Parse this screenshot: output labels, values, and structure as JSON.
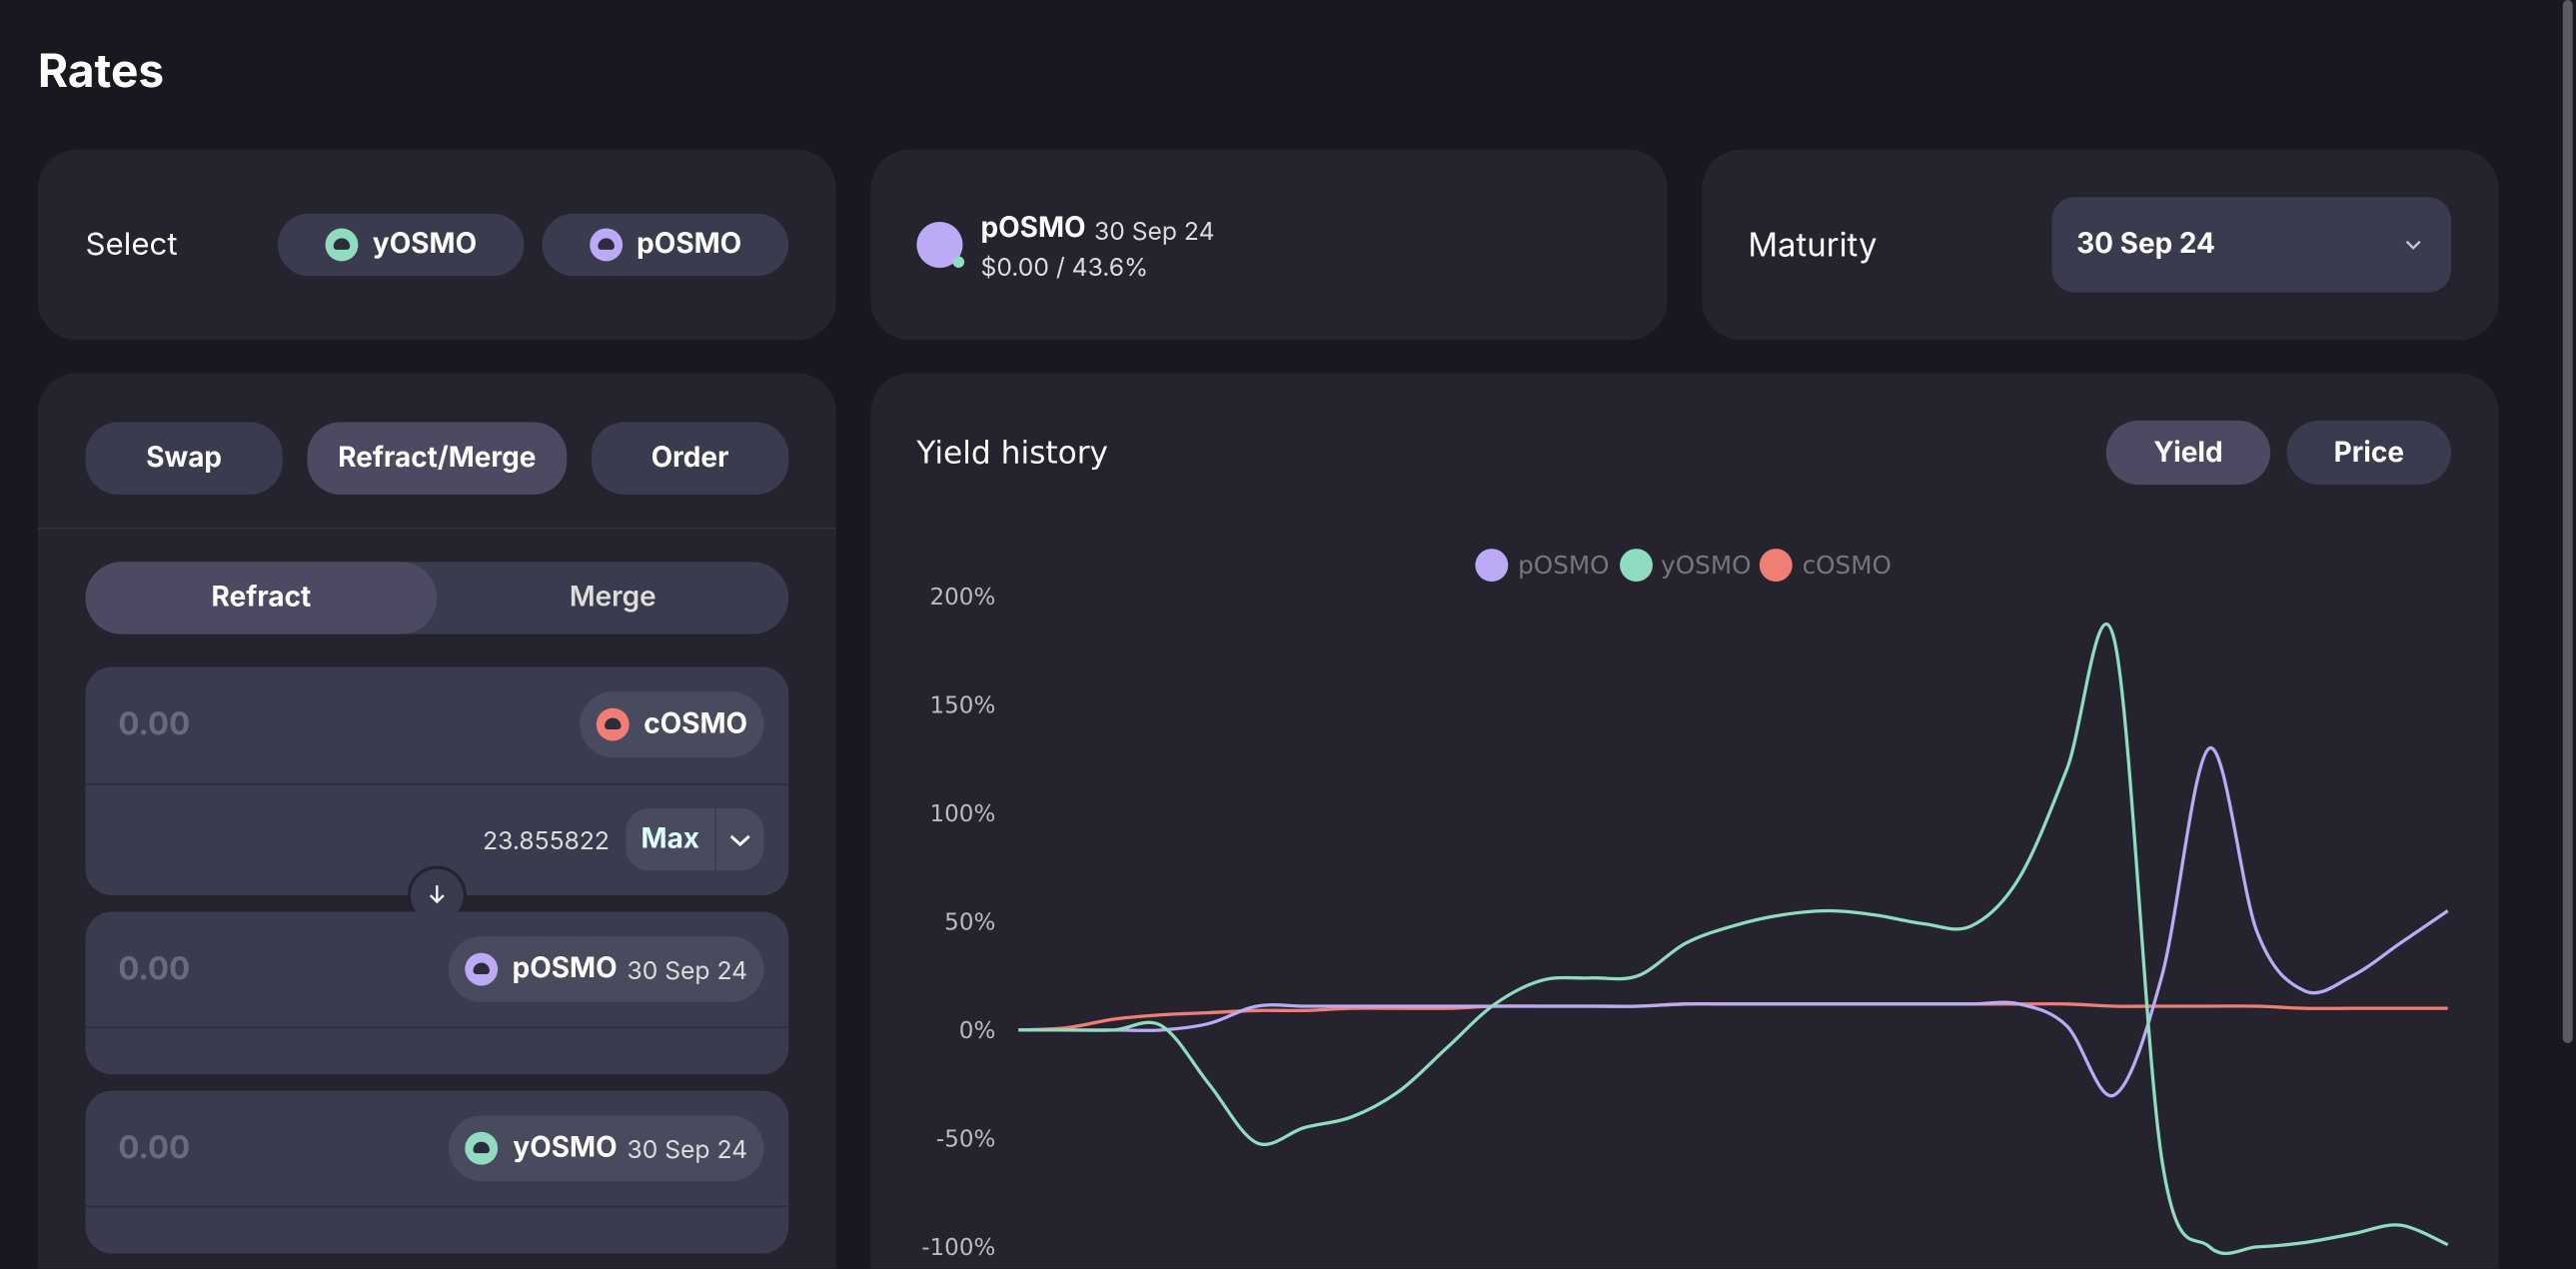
{
  "page": {
    "title": "Rates"
  },
  "select": {
    "label": "Select",
    "tokens": [
      "yOSMO",
      "pOSMO"
    ]
  },
  "selected": {
    "token": "pOSMO",
    "date": "30 Sep 24",
    "stats": "$0.00 / 43.6%"
  },
  "maturity": {
    "label": "Maturity",
    "value": "30 Sep 24"
  },
  "tabs": [
    "Swap",
    "Refract/Merge",
    "Order"
  ],
  "mode": [
    "Refract",
    "Merge"
  ],
  "inputs": [
    {
      "amount": "0.00",
      "token": "cOSMO",
      "balance": "23.855822",
      "max": "Max"
    },
    {
      "amount": "0.00",
      "token": "pOSMO",
      "date": "30 Sep 24"
    },
    {
      "amount": "0.00",
      "token": "yOSMO",
      "date": "30 Sep 24"
    }
  ],
  "chart_toggle": [
    "Yield",
    "Price"
  ],
  "chart_data": {
    "type": "line",
    "title": "Yield history",
    "legend": "top",
    "categories": [
      null,
      null,
      null,
      null,
      null,
      null,
      null,
      null,
      null,
      null,
      null,
      null,
      null,
      null,
      null,
      null,
      null,
      null,
      null,
      null,
      null,
      null,
      null,
      null,
      null,
      null,
      null,
      null,
      null,
      null,
      null
    ],
    "series": [
      {
        "name": "pOSMO",
        "color": "#bcaaf6",
        "values": [
          0,
          0,
          0,
          0,
          3,
          11,
          11,
          11,
          11,
          11,
          11,
          11,
          11,
          11,
          12,
          12,
          12,
          12,
          12,
          12,
          12,
          12,
          2,
          -30,
          25,
          130,
          45,
          18,
          25,
          40,
          55
        ]
      },
      {
        "name": "yOSMO",
        "color": "#8fdcc1",
        "values": [
          0,
          0,
          0,
          2,
          -25,
          -52,
          -45,
          -40,
          -28,
          -8,
          12,
          23,
          24,
          25,
          40,
          48,
          53,
          55,
          53,
          49,
          48,
          70,
          120,
          180,
          -60,
          -100,
          -100,
          -98,
          -94,
          -90,
          -99
        ]
      },
      {
        "name": "cOSMO",
        "color": "#f07e74",
        "values": [
          0,
          1,
          5,
          7,
          8,
          9,
          9,
          10,
          10,
          10,
          11,
          11,
          11,
          11,
          12,
          12,
          12,
          12,
          12,
          12,
          12,
          12,
          12,
          11,
          11,
          11,
          11,
          10,
          10,
          10,
          10
        ]
      }
    ],
    "ylim": [
      -100,
      200
    ],
    "yticks": [
      {
        "value": 200,
        "label": "200%"
      },
      {
        "value": 150,
        "label": "150%"
      },
      {
        "value": 100,
        "label": "100%"
      },
      {
        "value": 50,
        "label": "50%"
      },
      {
        "value": 0,
        "label": "0%"
      },
      {
        "value": -50,
        "label": "-50%"
      },
      {
        "value": -100,
        "label": "-100%"
      }
    ]
  }
}
